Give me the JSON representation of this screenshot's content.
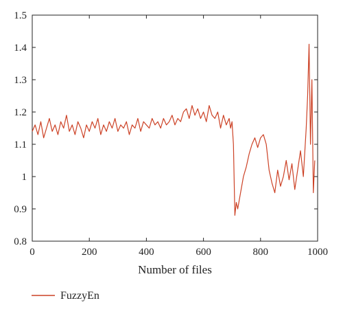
{
  "chart_data": {
    "type": "line",
    "title": "",
    "xlabel": "Number of files",
    "ylabel": "",
    "xlim": [
      0,
      1000
    ],
    "ylim": [
      0.8,
      1.5
    ],
    "x_ticks": [
      0,
      200,
      400,
      600,
      800,
      1000
    ],
    "y_ticks": [
      0.8,
      0.9,
      1,
      1.1,
      1.2,
      1.3,
      1.4,
      1.5
    ],
    "x_tick_labels": [
      "0",
      "200",
      "400",
      "600",
      "800",
      "1000"
    ],
    "y_tick_labels": [
      "0.8",
      "0.9",
      "1",
      "1.1",
      "1.2",
      "1.3",
      "1.4",
      "1.5"
    ],
    "grid": false,
    "legend_position": "bottom-left",
    "series": [
      {
        "name": "FuzzyEn",
        "color": "#cc4125",
        "x": [
          0,
          10,
          20,
          30,
          40,
          50,
          60,
          70,
          80,
          90,
          100,
          110,
          120,
          130,
          140,
          150,
          160,
          170,
          180,
          190,
          200,
          210,
          220,
          230,
          240,
          250,
          260,
          270,
          280,
          290,
          300,
          310,
          320,
          330,
          340,
          350,
          360,
          370,
          380,
          390,
          400,
          410,
          420,
          430,
          440,
          450,
          460,
          470,
          480,
          490,
          500,
          510,
          520,
          530,
          540,
          550,
          560,
          570,
          580,
          590,
          600,
          610,
          620,
          630,
          640,
          650,
          660,
          670,
          680,
          690,
          695,
          700,
          705,
          710,
          715,
          720,
          730,
          740,
          750,
          760,
          770,
          780,
          790,
          800,
          810,
          820,
          830,
          840,
          850,
          860,
          870,
          880,
          890,
          900,
          910,
          920,
          930,
          940,
          950,
          960,
          965,
          970,
          975,
          980,
          985,
          990
        ],
        "y": [
          1.14,
          1.16,
          1.13,
          1.17,
          1.12,
          1.15,
          1.18,
          1.14,
          1.16,
          1.13,
          1.17,
          1.15,
          1.19,
          1.14,
          1.16,
          1.13,
          1.17,
          1.15,
          1.12,
          1.16,
          1.14,
          1.17,
          1.15,
          1.18,
          1.13,
          1.16,
          1.14,
          1.17,
          1.15,
          1.18,
          1.14,
          1.16,
          1.15,
          1.17,
          1.13,
          1.16,
          1.15,
          1.18,
          1.14,
          1.17,
          1.16,
          1.15,
          1.18,
          1.16,
          1.17,
          1.15,
          1.18,
          1.16,
          1.17,
          1.19,
          1.16,
          1.18,
          1.17,
          1.2,
          1.21,
          1.18,
          1.22,
          1.19,
          1.21,
          1.18,
          1.2,
          1.17,
          1.22,
          1.19,
          1.18,
          1.2,
          1.15,
          1.19,
          1.16,
          1.18,
          1.15,
          1.17,
          1.1,
          0.88,
          0.92,
          0.9,
          0.95,
          1.0,
          1.03,
          1.07,
          1.1,
          1.12,
          1.09,
          1.12,
          1.13,
          1.1,
          1.02,
          0.98,
          0.95,
          1.02,
          0.97,
          1.0,
          1.05,
          0.99,
          1.04,
          0.96,
          1.02,
          1.08,
          1.0,
          1.15,
          1.25,
          1.41,
          1.1,
          1.3,
          0.95,
          1.05
        ]
      }
    ]
  }
}
